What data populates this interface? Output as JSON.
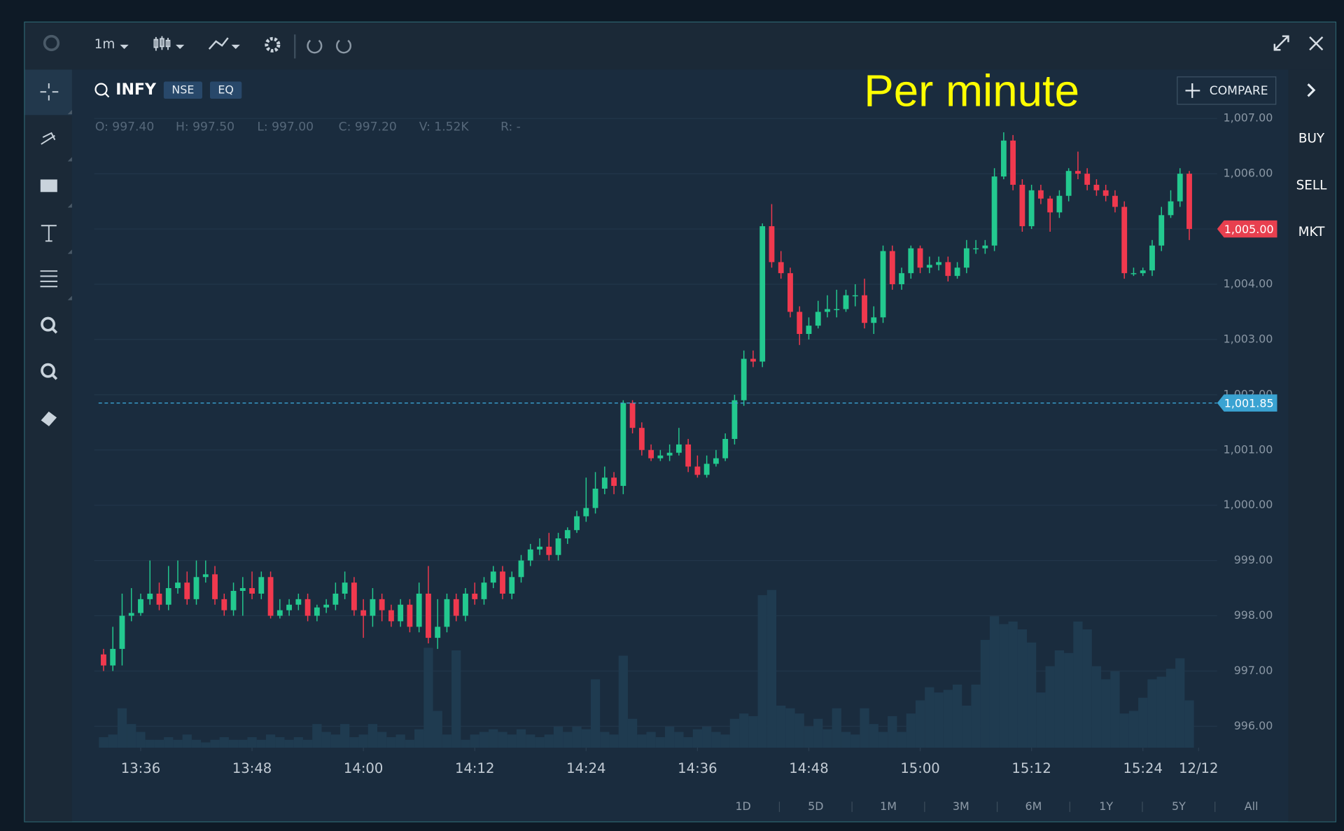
{
  "toolbar": {
    "interval": "1m"
  },
  "header": {
    "symbol": "INFY",
    "exchange": "NSE",
    "segment": "EQ",
    "info": [
      "O: 997.40",
      "H: 997.50",
      "L:  997.00",
      "C: 997.20",
      "V:  1.52K",
      "R: -"
    ]
  },
  "compare": "COMPARE",
  "side_buttons": [
    "BUY",
    "SELL",
    "MKT"
  ],
  "ranges": [
    "1D",
    "5D",
    "1M",
    "3M",
    "6M",
    "1Y",
    "5Y",
    "All"
  ],
  "chart_data": {
    "type": "candlestick",
    "annotation": "Per minute",
    "up_color": "#23c98f",
    "down_color": "#f0394e",
    "volume_color": "#1f3b50",
    "grid": true,
    "x": [
      812,
      813,
      814,
      815,
      816,
      817,
      818,
      819,
      820,
      821,
      822,
      823,
      824,
      825,
      826,
      827,
      828,
      829,
      830,
      831,
      832,
      833,
      834,
      835,
      836,
      837,
      838,
      839,
      840,
      841,
      842,
      843,
      844,
      845,
      846,
      847,
      848,
      849,
      850,
      851,
      852,
      853,
      854,
      855,
      856,
      857,
      858,
      859,
      860,
      861,
      862,
      863,
      864,
      865,
      866,
      867,
      868,
      869,
      870,
      871,
      872,
      873,
      874,
      875,
      876,
      877,
      878,
      879,
      880,
      881,
      882,
      883,
      884,
      885,
      886,
      887,
      888,
      889,
      890,
      891,
      892,
      893,
      894,
      895,
      896,
      897,
      898,
      899,
      900,
      901,
      902,
      903,
      904,
      905,
      906,
      907,
      908,
      909,
      910,
      911,
      912,
      913,
      914,
      915,
      916,
      917,
      918,
      919,
      920,
      921,
      922,
      923,
      924,
      925,
      926,
      927,
      928,
      929
    ],
    "open": [
      997.3,
      997.1,
      997.4,
      998.0,
      998.05,
      998.3,
      998.4,
      998.2,
      998.5,
      998.6,
      998.3,
      998.7,
      998.75,
      998.3,
      998.1,
      998.45,
      998.5,
      998.4,
      998.7,
      998.0,
      998.1,
      998.2,
      998.3,
      998.0,
      998.15,
      998.2,
      998.4,
      998.6,
      998.1,
      998.0,
      998.3,
      998.1,
      997.9,
      998.2,
      997.8,
      998.4,
      997.6,
      997.8,
      998.3,
      998.0,
      998.4,
      998.3,
      998.6,
      998.8,
      998.4,
      998.7,
      999.0,
      999.2,
      999.25,
      999.1,
      999.4,
      999.55,
      999.8,
      999.95,
      1000.3,
      1000.5,
      1000.35,
      1001.85,
      1001.4,
      1001.0,
      1000.85,
      1000.9,
      1000.95,
      1001.1,
      1000.7,
      1000.55,
      1000.75,
      1000.85,
      1001.2,
      1001.9,
      1002.65,
      1002.6,
      1005.05,
      1004.4,
      1004.2,
      1003.5,
      1003.1,
      1003.25,
      1003.5,
      1003.55,
      1003.55,
      1003.8,
      1003.8,
      1003.3,
      1003.4,
      1004.6,
      1004.0,
      1004.2,
      1004.65,
      1004.3,
      1004.35,
      1004.4,
      1004.15,
      1004.3,
      1004.65,
      1004.65,
      1004.7,
      1005.95,
      1006.6,
      1005.8,
      1005.05,
      1005.7,
      1005.55,
      1005.3,
      1005.6,
      1006.05,
      1006.0,
      1005.8,
      1005.7,
      1005.6,
      1005.4,
      1004.2,
      1004.2,
      1004.25,
      1004.7,
      1005.25,
      1005.5,
      1006.0
    ],
    "high": [
      997.4,
      997.8,
      998.4,
      998.5,
      998.4,
      999.0,
      998.6,
      998.9,
      999.0,
      998.8,
      999.0,
      999.0,
      998.9,
      998.4,
      998.6,
      998.7,
      998.8,
      998.8,
      998.8,
      998.3,
      998.3,
      998.4,
      998.4,
      998.2,
      998.3,
      998.6,
      998.8,
      998.7,
      998.3,
      998.5,
      998.4,
      998.2,
      998.3,
      998.3,
      998.6,
      998.9,
      998.3,
      998.4,
      998.4,
      998.5,
      998.6,
      998.7,
      998.9,
      998.9,
      998.8,
      999.1,
      999.3,
      999.4,
      999.5,
      999.5,
      999.6,
      999.9,
      1000.5,
      1000.6,
      1000.7,
      1000.6,
      1001.9,
      1001.9,
      1001.5,
      1001.1,
      1001.0,
      1001.1,
      1001.4,
      1001.2,
      1000.9,
      1000.9,
      1001.0,
      1001.3,
      1002.0,
      1002.8,
      1002.8,
      1005.1,
      1005.45,
      1004.6,
      1004.3,
      1003.6,
      1003.4,
      1003.7,
      1003.8,
      1003.9,
      1003.9,
      1004.0,
      1004.1,
      1003.6,
      1004.7,
      1004.7,
      1004.3,
      1004.7,
      1004.7,
      1004.5,
      1004.5,
      1004.5,
      1004.4,
      1004.8,
      1004.8,
      1004.8,
      1006.1,
      1006.75,
      1006.7,
      1005.9,
      1005.8,
      1005.8,
      1005.6,
      1005.7,
      1006.1,
      1006.4,
      1006.1,
      1005.9,
      1005.8,
      1005.7,
      1005.5,
      1004.3,
      1004.3,
      1004.8,
      1005.4,
      1005.7,
      1006.1,
      1006.05
    ],
    "low": [
      997.0,
      997.0,
      997.1,
      997.9,
      998.0,
      998.2,
      998.1,
      998.1,
      998.4,
      998.2,
      998.2,
      998.6,
      998.2,
      998.0,
      998.0,
      998.0,
      998.3,
      998.3,
      997.95,
      997.95,
      998.0,
      998.1,
      997.9,
      997.9,
      998.05,
      998.1,
      998.3,
      998.0,
      997.6,
      997.8,
      997.9,
      997.8,
      997.8,
      997.7,
      997.7,
      997.5,
      997.4,
      997.7,
      997.9,
      997.9,
      998.2,
      998.2,
      998.5,
      998.3,
      998.3,
      998.6,
      998.9,
      999.1,
      999.0,
      999.0,
      999.3,
      999.5,
      999.7,
      999.85,
      1000.2,
      1000.2,
      1000.2,
      1001.3,
      1000.9,
      1000.8,
      1000.8,
      1000.8,
      1000.9,
      1000.6,
      1000.5,
      1000.5,
      1000.7,
      1000.8,
      1001.1,
      1001.8,
      1002.5,
      1002.5,
      1004.3,
      1004.1,
      1003.4,
      1002.9,
      1003.0,
      1003.2,
      1003.4,
      1003.4,
      1003.5,
      1003.6,
      1003.2,
      1003.1,
      1003.3,
      1003.9,
      1003.9,
      1004.1,
      1004.2,
      1004.2,
      1004.25,
      1004.05,
      1004.1,
      1004.2,
      1004.55,
      1004.55,
      1004.6,
      1005.9,
      1005.7,
      1004.95,
      1005.0,
      1005.45,
      1004.95,
      1005.2,
      1005.5,
      1005.9,
      1005.7,
      1005.6,
      1005.5,
      1005.3,
      1004.1,
      1004.15,
      1004.15,
      1004.15,
      1004.6,
      1005.2,
      1005.4,
      1004.8
    ],
    "close": [
      997.1,
      997.4,
      998.0,
      998.05,
      998.3,
      998.4,
      998.2,
      998.5,
      998.6,
      998.3,
      998.7,
      998.75,
      998.3,
      998.1,
      998.45,
      998.5,
      998.4,
      998.7,
      998.0,
      998.1,
      998.2,
      998.3,
      998.0,
      998.15,
      998.2,
      998.4,
      998.6,
      998.1,
      998.0,
      998.3,
      998.1,
      997.9,
      998.2,
      997.8,
      998.4,
      997.6,
      997.8,
      998.3,
      998.0,
      998.4,
      998.3,
      998.6,
      998.8,
      998.4,
      998.7,
      999.0,
      999.2,
      999.25,
      999.1,
      999.4,
      999.55,
      999.8,
      999.95,
      1000.3,
      1000.5,
      1000.35,
      1001.85,
      1001.4,
      1001.0,
      1000.85,
      1000.9,
      1000.95,
      1001.1,
      1000.7,
      1000.55,
      1000.75,
      1000.85,
      1001.2,
      1001.9,
      1002.65,
      1002.6,
      1005.05,
      1004.4,
      1004.2,
      1003.5,
      1003.1,
      1003.25,
      1003.5,
      1003.55,
      1003.55,
      1003.8,
      1003.8,
      1003.3,
      1003.4,
      1004.6,
      1004.0,
      1004.2,
      1004.65,
      1004.3,
      1004.35,
      1004.4,
      1004.15,
      1004.3,
      1004.65,
      1004.65,
      1004.7,
      1005.95,
      1006.6,
      1005.8,
      1005.05,
      1005.7,
      1005.55,
      1005.3,
      1005.6,
      1006.05,
      1006.0,
      1005.8,
      1005.7,
      1005.6,
      1005.4,
      1004.2,
      1004.2,
      1004.25,
      1004.7,
      1005.25,
      1005.5,
      1006.0,
      1005.0
    ],
    "volume": [
      0.4,
      0.5,
      1.5,
      0.9,
      0.6,
      0.3,
      0.3,
      0.4,
      0.3,
      0.5,
      0.3,
      0.2,
      0.3,
      0.4,
      0.3,
      0.3,
      0.4,
      0.3,
      0.5,
      0.4,
      0.3,
      0.4,
      0.3,
      0.9,
      0.6,
      0.5,
      0.9,
      0.4,
      0.5,
      0.9,
      0.6,
      0.4,
      0.5,
      0.3,
      0.7,
      3.8,
      1.4,
      0.5,
      3.7,
      0.3,
      0.5,
      0.6,
      0.7,
      0.6,
      0.5,
      0.7,
      0.5,
      0.4,
      0.5,
      0.8,
      0.6,
      0.8,
      0.7,
      2.6,
      0.6,
      0.5,
      3.5,
      1.1,
      0.5,
      0.6,
      0.4,
      0.8,
      0.6,
      0.4,
      0.7,
      0.8,
      0.6,
      0.5,
      1.1,
      1.3,
      1.2,
      5.8,
      6.0,
      1.6,
      1.5,
      1.3,
      0.8,
      1.1,
      0.7,
      1.5,
      0.6,
      0.5,
      1.5,
      0.9,
      0.6,
      1.2,
      0.6,
      1.3,
      1.8,
      2.3,
      2.1,
      2.2,
      2.4,
      1.6,
      2.4,
      4.1,
      5.0,
      4.7,
      4.8,
      4.5,
      4.0,
      2.1,
      3.1,
      3.7,
      3.6,
      4.8,
      4.5,
      3.1,
      2.6,
      2.9,
      1.3,
      1.4,
      1.9,
      2.6,
      2.7,
      3.0,
      3.4,
      1.8
    ],
    "xlim": [
      811,
      932
    ],
    "xticks": [
      {
        "value": 816,
        "label": "13:36"
      },
      {
        "value": 828,
        "label": "13:48"
      },
      {
        "value": 840,
        "label": "14:00"
      },
      {
        "value": 852,
        "label": "14:12"
      },
      {
        "value": 864,
        "label": "14:24"
      },
      {
        "value": 876,
        "label": "14:36"
      },
      {
        "value": 888,
        "label": "14:48"
      },
      {
        "value": 900,
        "label": "15:00"
      },
      {
        "value": 912,
        "label": "15:12"
      },
      {
        "value": 924,
        "label": "15:24"
      },
      {
        "value": 930,
        "label": "12/12"
      }
    ],
    "ylim": [
      996,
      1007
    ],
    "yticks": [
      {
        "value": 996,
        "label": "996.00"
      },
      {
        "value": 997,
        "label": "997.00"
      },
      {
        "value": 998,
        "label": "998.00"
      },
      {
        "value": 999,
        "label": "999.00"
      },
      {
        "value": 1000,
        "label": "1,000.00"
      },
      {
        "value": 1001,
        "label": "1,001.00"
      },
      {
        "value": 1002,
        "label": "1,002.00"
      },
      {
        "value": 1003,
        "label": "1,003.00"
      },
      {
        "value": 1004,
        "label": "1,004.00"
      },
      {
        "value": 1005,
        "label": "1,005.00"
      },
      {
        "value": 1006,
        "label": "1,006.00"
      },
      {
        "value": 1007,
        "label": "1,007.00"
      }
    ],
    "last_price": {
      "value": 1005,
      "label": "1,005.00",
      "color": "#e8404f"
    },
    "reference_line": {
      "value": 1001.85,
      "label": "1,001.85",
      "color": "#3aa3d2"
    }
  }
}
